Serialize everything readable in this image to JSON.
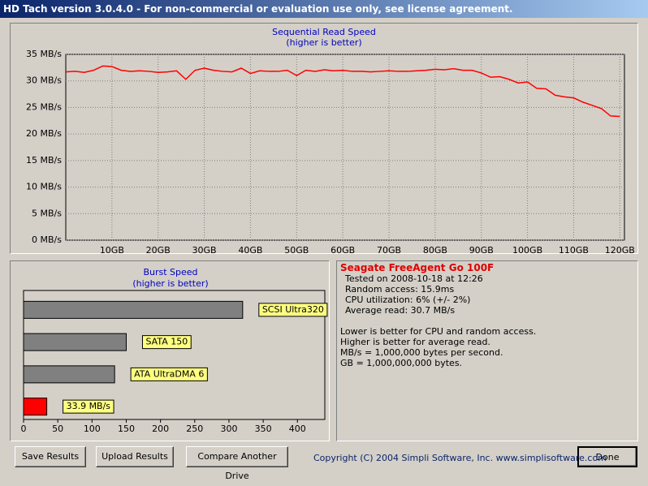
{
  "window": {
    "title": "HD Tach version 3.0.4.0  - For non-commercial or evaluation use only, see license agreement."
  },
  "chart_data": [
    {
      "type": "line",
      "title": "Sequential Read Speed",
      "subtitle": "(higher is better)",
      "color": "#ff0000",
      "grid": true,
      "xlim": [
        0,
        121
      ],
      "ylim": [
        0,
        35
      ],
      "yticks": [
        {
          "value": 0,
          "label": "0 MB/s"
        },
        {
          "value": 5,
          "label": "5 MB/s"
        },
        {
          "value": 10,
          "label": "10 MB/s"
        },
        {
          "value": 15,
          "label": "15 MB/s"
        },
        {
          "value": 20,
          "label": "20 MB/s"
        },
        {
          "value": 25,
          "label": "25 MB/s"
        },
        {
          "value": 30,
          "label": "30 MB/s"
        },
        {
          "value": 35,
          "label": "35 MB/s"
        }
      ],
      "xticks": [
        {
          "value": 10,
          "label": "10GB"
        },
        {
          "value": 20,
          "label": "20GB"
        },
        {
          "value": 30,
          "label": "30GB"
        },
        {
          "value": 40,
          "label": "40GB"
        },
        {
          "value": 50,
          "label": "50GB"
        },
        {
          "value": 60,
          "label": "60GB"
        },
        {
          "value": 70,
          "label": "70GB"
        },
        {
          "value": 80,
          "label": "80GB"
        },
        {
          "value": 90,
          "label": "90GB"
        },
        {
          "value": 100,
          "label": "100GB"
        },
        {
          "value": 110,
          "label": "110GB"
        },
        {
          "value": 120,
          "label": "120GB"
        }
      ],
      "x": [
        0,
        2,
        4,
        6,
        8,
        10,
        12,
        14,
        16,
        18,
        20,
        22,
        24,
        26,
        28,
        30,
        32,
        34,
        36,
        38,
        40,
        42,
        44,
        46,
        48,
        50,
        52,
        54,
        56,
        58,
        60,
        62,
        64,
        66,
        68,
        70,
        72,
        74,
        76,
        78,
        80,
        82,
        84,
        86,
        88,
        90,
        92,
        94,
        96,
        98,
        100,
        102,
        104,
        106,
        108,
        110,
        112,
        114,
        116,
        118,
        120
      ],
      "values": [
        31.7,
        31.8,
        31.6,
        32.0,
        32.8,
        32.7,
        32.0,
        31.8,
        31.9,
        31.8,
        31.6,
        31.7,
        31.9,
        30.3,
        32.0,
        32.4,
        32.0,
        31.8,
        31.7,
        32.4,
        31.4,
        31.9,
        31.8,
        31.8,
        32.0,
        31.0,
        32.0,
        31.8,
        32.1,
        31.9,
        32.0,
        31.8,
        31.8,
        31.7,
        31.8,
        31.9,
        31.8,
        31.8,
        31.9,
        32.0,
        32.2,
        32.1,
        32.3,
        32.0,
        32.0,
        31.5,
        30.7,
        30.8,
        30.3,
        29.6,
        29.8,
        28.6,
        28.5,
        27.3,
        27.0,
        26.8,
        26.0,
        25.4,
        24.8,
        23.4,
        23.3
      ]
    },
    {
      "type": "hbar",
      "title": "Burst Speed",
      "subtitle": "(higher is better)",
      "grid": true,
      "xlim": [
        0,
        440
      ],
      "xticks": [
        0,
        50,
        100,
        150,
        200,
        250,
        300,
        350,
        400
      ],
      "categories": [
        "SCSI Ultra320",
        "SATA 150",
        "ATA UltraDMA 6",
        null
      ],
      "values": [
        320,
        150,
        133,
        33.9
      ],
      "value_labels": [
        null,
        null,
        null,
        "33.9 MB/s"
      ],
      "colors": [
        "#808080",
        "#808080",
        "#808080",
        "#ff0000"
      ]
    }
  ],
  "info": {
    "heading": "Seagate FreeAgent Go 100F",
    "lines": [
      "Tested on 2008-10-18 at 12:26",
      "Random access: 15.9ms",
      "CPU utilization: 6% (+/- 2%)",
      "Average read: 30.7 MB/s"
    ],
    "notes": [
      "Lower is better for CPU and random access.",
      "Higher is better for average read.",
      "MB/s = 1,000,000 bytes per second.",
      "GB = 1,000,000,000 bytes."
    ]
  },
  "buttons": [
    "Save Results",
    "Upload Results",
    "Compare Another Drive",
    "Done"
  ],
  "copyright": "Copyright (C) 2004 Simpli Software, Inc. www.simplisoftware.com"
}
